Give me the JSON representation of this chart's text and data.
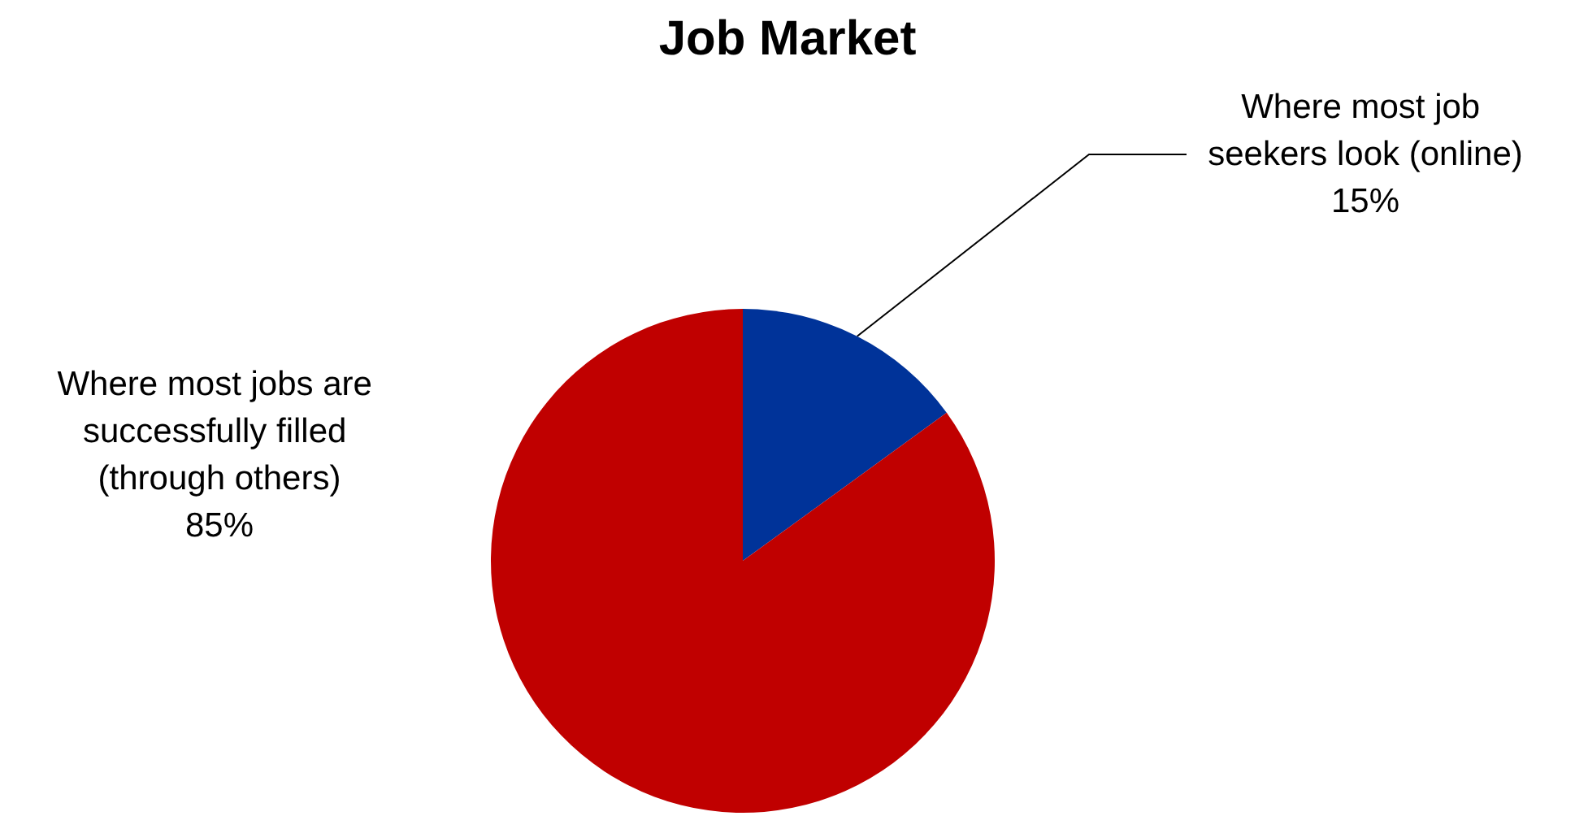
{
  "chart_data": {
    "type": "pie",
    "title": "Job Market",
    "categories": [
      "Where most job seekers look (online)",
      "Where most jobs are successfully filled (through others)"
    ],
    "values": [
      15,
      85
    ],
    "colors": [
      "#003399",
      "#c00000"
    ],
    "value_labels": [
      "15%",
      "85%"
    ]
  }
}
